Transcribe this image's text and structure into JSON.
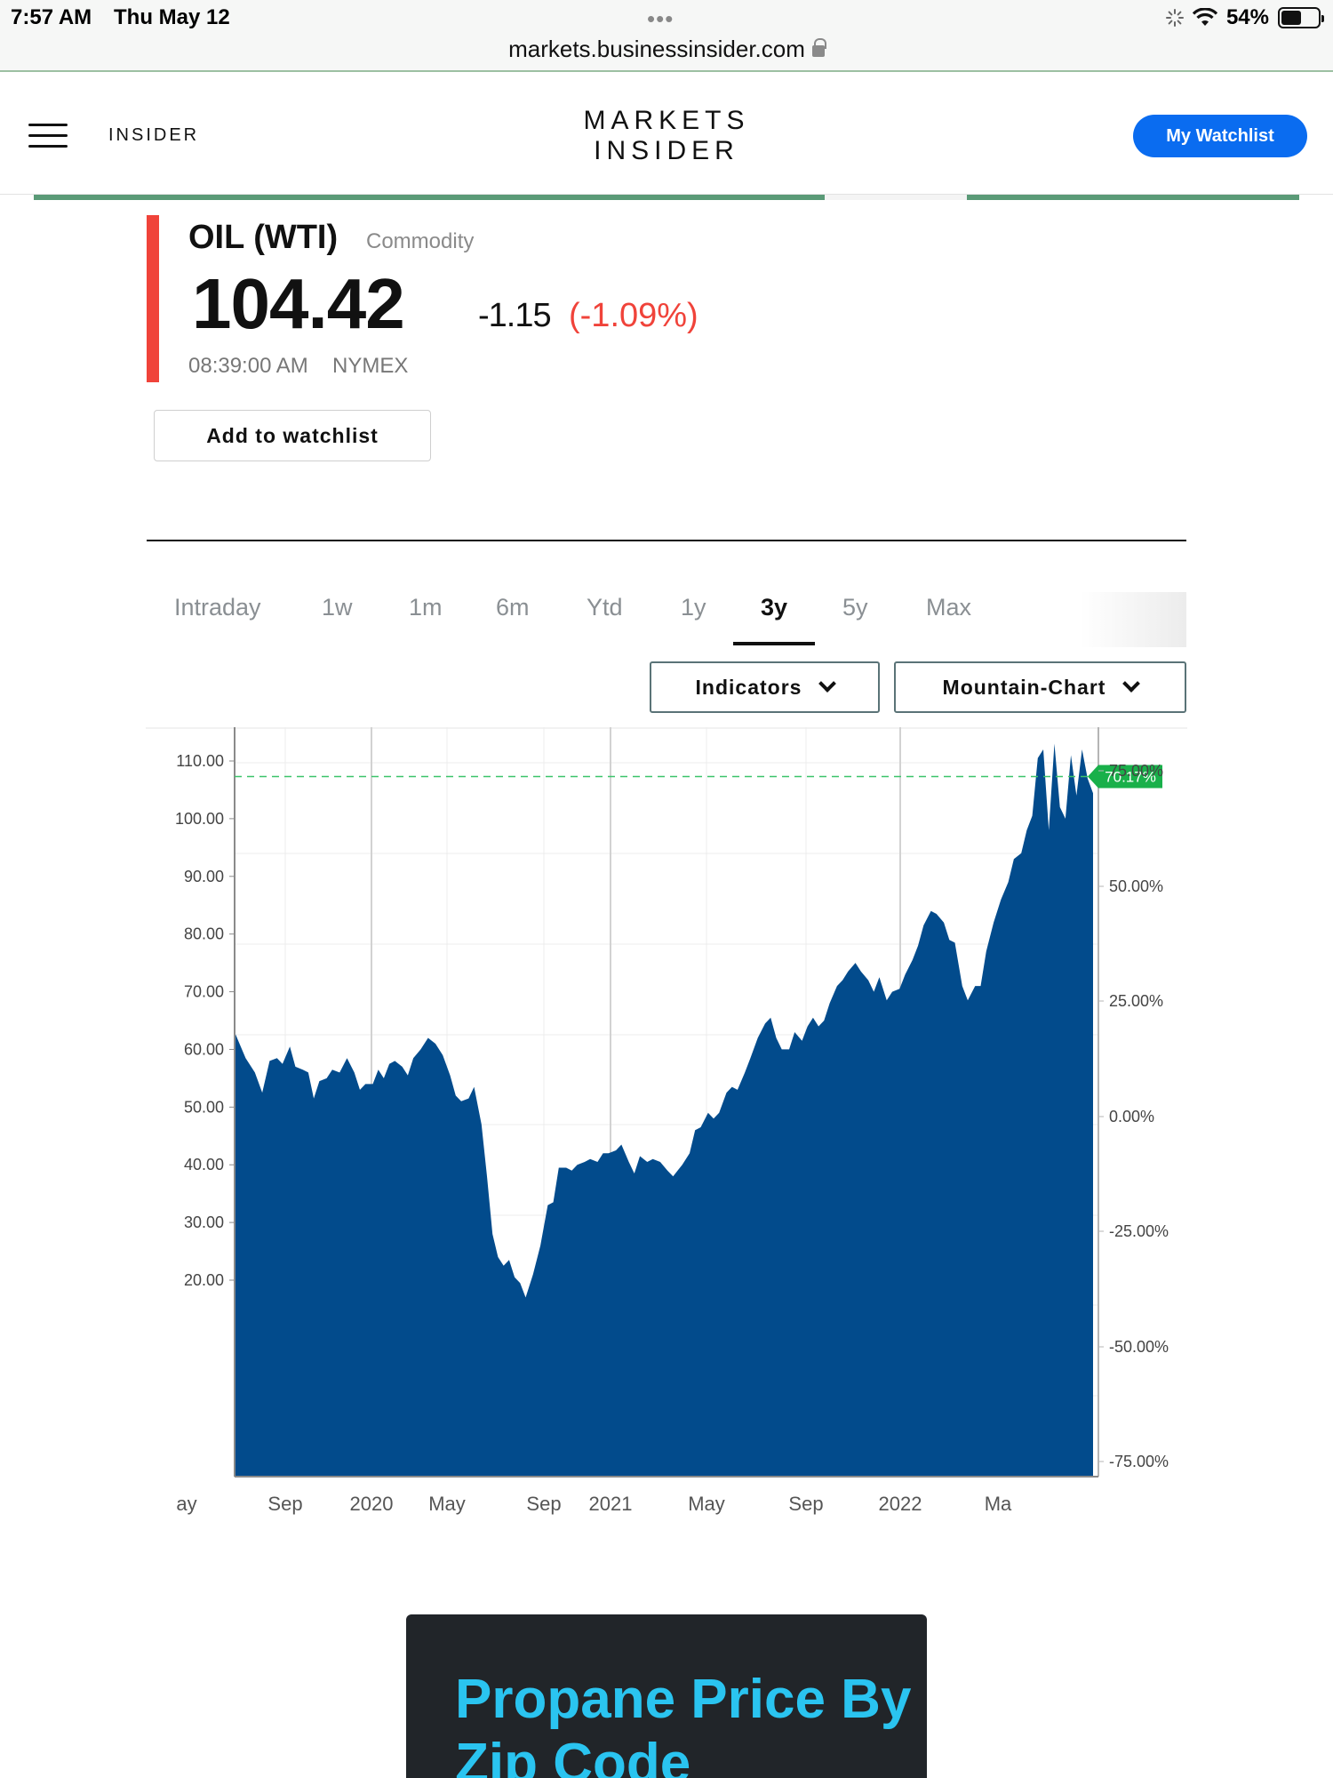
{
  "status_bar": {
    "time": "7:57 AM",
    "date": "Thu May 12",
    "url": "markets.businessinsider.com",
    "battery": "54%",
    "battery_level": 0.54
  },
  "header": {
    "brand_left": "INSIDER",
    "logo_line1": "MARKETS",
    "logo_line2": "INSIDER",
    "watchlist_button": "My Watchlist"
  },
  "quote": {
    "name": "OIL (WTI)",
    "type": "Commodity",
    "price": "104.42",
    "change": "-1.15",
    "change_pct": "(-1.09%)",
    "time": "08:39:00 AM",
    "exchange": "NYMEX",
    "add_button": "Add to watchlist"
  },
  "timeframes": {
    "items": [
      "Intraday",
      "1w",
      "1m",
      "6m",
      "Ytd",
      "1y",
      "3y",
      "5y",
      "Max"
    ],
    "active": "3y"
  },
  "controls": {
    "indicators": "Indicators",
    "chart_type": "Mountain-Chart"
  },
  "chart_data": {
    "type": "area",
    "title": "",
    "xlabel": "",
    "ylabel": "",
    "x_ticks": [
      "ay",
      "Sep",
      "2020",
      "May",
      "Sep",
      "2021",
      "May",
      "Sep",
      "2022",
      "Ma"
    ],
    "y_ticks_left": [
      "110.00",
      "100.00",
      "90.00",
      "80.00",
      "70.00",
      "60.00",
      "50.00",
      "40.00",
      "30.00",
      "20.00"
    ],
    "y_ticks_right": [
      "75.00%",
      "50.00%",
      "25.00%",
      "0.00%",
      "-25.00%",
      "-50.00%",
      "-75.00%"
    ],
    "ylim": [
      15,
      113
    ],
    "current_marker": {
      "label": "70.17%",
      "value": 107.3
    },
    "series": [
      {
        "color": "#024b8c",
        "points": [
          [
            0.0,
            63.0
          ],
          [
            0.6,
            58.5
          ],
          [
            1.1,
            56.0
          ],
          [
            1.5,
            52.5
          ],
          [
            1.9,
            58.0
          ],
          [
            2.3,
            58.5
          ],
          [
            2.6,
            57.5
          ],
          [
            3.0,
            60.5
          ],
          [
            3.3,
            57.0
          ],
          [
            3.7,
            56.5
          ],
          [
            4.0,
            56.0
          ],
          [
            4.3,
            51.5
          ],
          [
            4.6,
            54.5
          ],
          [
            5.0,
            55.0
          ],
          [
            5.3,
            56.5
          ],
          [
            5.7,
            56.0
          ],
          [
            6.1,
            58.5
          ],
          [
            6.5,
            56.0
          ],
          [
            6.8,
            53.0
          ],
          [
            7.1,
            54.0
          ],
          [
            7.5,
            54.0
          ],
          [
            7.8,
            56.5
          ],
          [
            8.1,
            55.0
          ],
          [
            8.4,
            57.5
          ],
          [
            8.7,
            58.0
          ],
          [
            9.1,
            57.0
          ],
          [
            9.4,
            55.5
          ],
          [
            9.7,
            58.5
          ],
          [
            10.1,
            60.0
          ],
          [
            10.5,
            62.0
          ],
          [
            10.9,
            61.0
          ],
          [
            11.3,
            59.0
          ],
          [
            11.7,
            55.5
          ],
          [
            12.0,
            52.0
          ],
          [
            12.3,
            51.0
          ],
          [
            12.7,
            51.5
          ],
          [
            13.0,
            53.5
          ],
          [
            13.4,
            47.0
          ],
          [
            13.7,
            38.0
          ],
          [
            14.0,
            28.0
          ],
          [
            14.3,
            24.0
          ],
          [
            14.6,
            22.5
          ],
          [
            14.9,
            23.5
          ],
          [
            15.2,
            20.5
          ],
          [
            15.5,
            19.5
          ],
          [
            15.8,
            17.0
          ],
          [
            16.2,
            21.0
          ],
          [
            16.6,
            26.0
          ],
          [
            17.0,
            33.0
          ],
          [
            17.3,
            33.5
          ],
          [
            17.6,
            39.5
          ],
          [
            18.0,
            39.5
          ],
          [
            18.3,
            39.0
          ],
          [
            18.6,
            40.0
          ],
          [
            19.0,
            40.5
          ],
          [
            19.3,
            41.0
          ],
          [
            19.7,
            40.5
          ],
          [
            20.0,
            42.0
          ],
          [
            20.3,
            42.0
          ],
          [
            20.7,
            42.5
          ],
          [
            21.0,
            43.5
          ],
          [
            21.4,
            40.5
          ],
          [
            21.7,
            38.5
          ],
          [
            22.0,
            41.5
          ],
          [
            22.4,
            40.5
          ],
          [
            22.7,
            41.0
          ],
          [
            23.1,
            40.5
          ],
          [
            23.5,
            39.0
          ],
          [
            23.8,
            38.0
          ],
          [
            24.3,
            40.0
          ],
          [
            24.7,
            42.0
          ],
          [
            25.0,
            46.0
          ],
          [
            25.3,
            46.5
          ],
          [
            25.7,
            49.0
          ],
          [
            26.0,
            48.0
          ],
          [
            26.3,
            49.0
          ],
          [
            26.7,
            52.5
          ],
          [
            27.0,
            53.5
          ],
          [
            27.3,
            53.0
          ],
          [
            27.7,
            56.0
          ],
          [
            28.0,
            58.5
          ],
          [
            28.4,
            62.0
          ],
          [
            28.8,
            64.5
          ],
          [
            29.1,
            65.5
          ],
          [
            29.4,
            62.0
          ],
          [
            29.7,
            60.0
          ],
          [
            30.1,
            60.0
          ],
          [
            30.4,
            63.0
          ],
          [
            30.8,
            61.5
          ],
          [
            31.1,
            64.0
          ],
          [
            31.4,
            65.5
          ],
          [
            31.7,
            64.0
          ],
          [
            32.0,
            65.0
          ],
          [
            32.3,
            68.0
          ],
          [
            32.7,
            71.0
          ],
          [
            33.0,
            72.0
          ],
          [
            33.3,
            73.5
          ],
          [
            33.7,
            75.0
          ],
          [
            34.0,
            73.5
          ],
          [
            34.4,
            72.0
          ],
          [
            34.7,
            70.0
          ],
          [
            35.0,
            72.5
          ],
          [
            35.4,
            68.5
          ],
          [
            35.7,
            70.0
          ],
          [
            36.1,
            70.5
          ],
          [
            36.4,
            73.0
          ],
          [
            36.8,
            75.5
          ],
          [
            37.1,
            78.0
          ],
          [
            37.4,
            81.5
          ],
          [
            37.8,
            84.0
          ],
          [
            38.1,
            83.5
          ],
          [
            38.5,
            82.0
          ],
          [
            38.8,
            79.0
          ],
          [
            39.1,
            78.5
          ],
          [
            39.5,
            71.0
          ],
          [
            39.8,
            68.5
          ],
          [
            40.2,
            71.0
          ],
          [
            40.5,
            71.0
          ],
          [
            40.8,
            77.0
          ],
          [
            41.2,
            82.0
          ],
          [
            41.6,
            86.0
          ],
          [
            42.0,
            89.0
          ],
          [
            42.3,
            93.0
          ],
          [
            42.7,
            94.0
          ],
          [
            43.0,
            98.0
          ],
          [
            43.3,
            100.5
          ],
          [
            43.6,
            110.5
          ],
          [
            43.9,
            112.0
          ],
          [
            44.2,
            98.0
          ],
          [
            44.5,
            113.0
          ],
          [
            44.8,
            102.0
          ],
          [
            45.1,
            100.0
          ],
          [
            45.4,
            111.0
          ],
          [
            45.7,
            104.0
          ],
          [
            46.0,
            112.0
          ],
          [
            46.3,
            107.0
          ],
          [
            46.6,
            104.4
          ]
        ]
      }
    ]
  },
  "promo": {
    "title": "Propane Price By Zip Code"
  }
}
